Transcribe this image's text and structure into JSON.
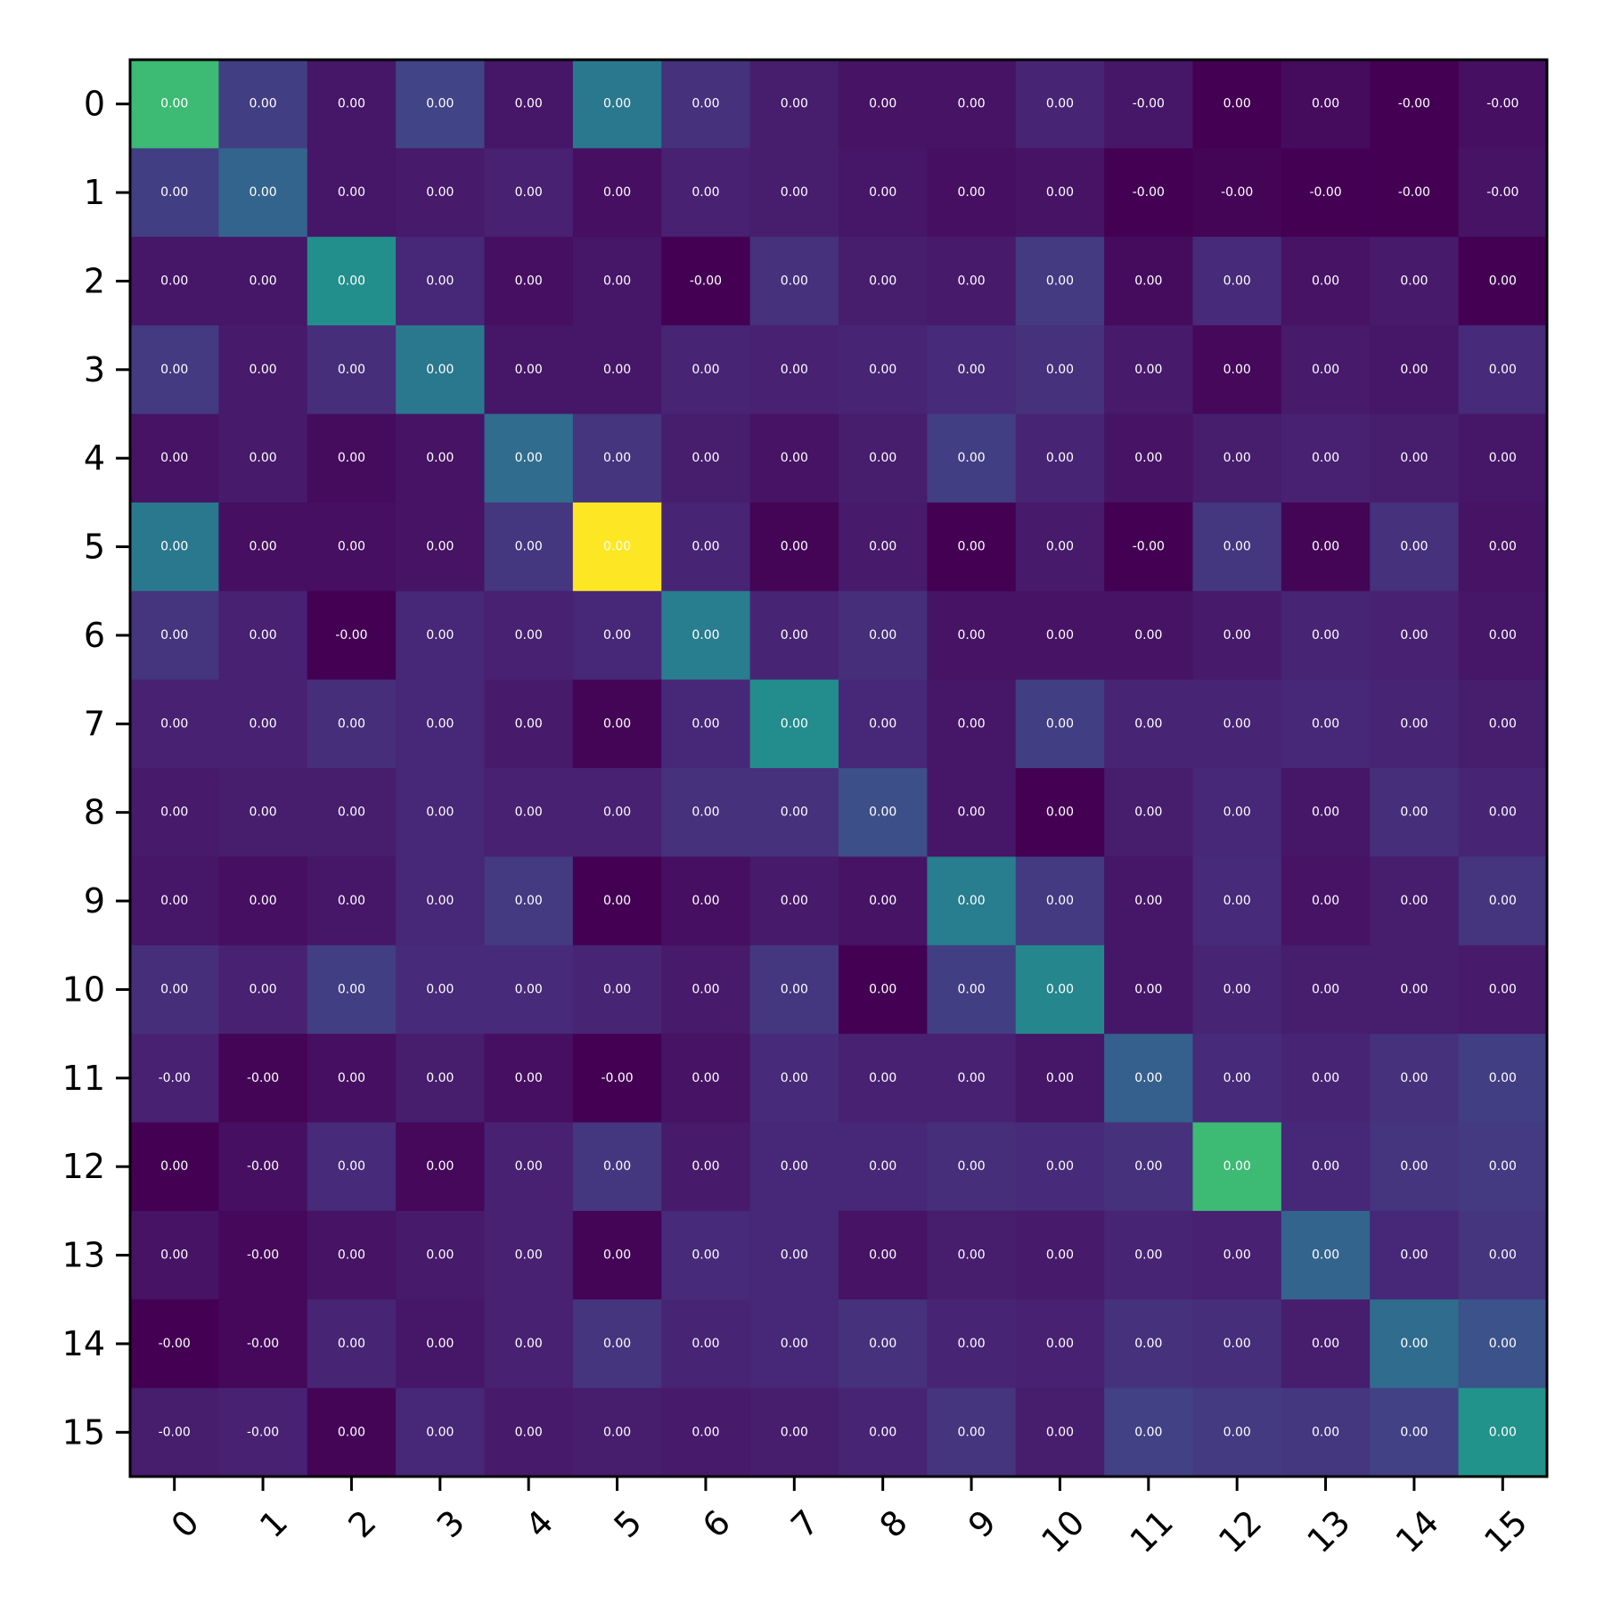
{
  "chart_data": {
    "type": "heatmap",
    "title": "",
    "xlabel": "",
    "ylabel": "",
    "colormap": "viridis",
    "x_categories": [
      "0",
      "1",
      "2",
      "3",
      "4",
      "5",
      "6",
      "7",
      "8",
      "9",
      "10",
      "11",
      "12",
      "13",
      "14",
      "15"
    ],
    "y_categories": [
      "0",
      "1",
      "2",
      "3",
      "4",
      "5",
      "6",
      "7",
      "8",
      "9",
      "10",
      "11",
      "12",
      "13",
      "14",
      "15"
    ],
    "intensity": [
      [
        0.68,
        0.18,
        0.06,
        0.2,
        0.06,
        0.4,
        0.14,
        0.08,
        0.05,
        0.05,
        0.1,
        0.06,
        0.0,
        0.03,
        0.0,
        0.04
      ],
      [
        0.18,
        0.32,
        0.06,
        0.07,
        0.09,
        0.04,
        0.09,
        0.08,
        0.06,
        0.04,
        0.05,
        0.0,
        0.01,
        0.0,
        0.0,
        0.05
      ],
      [
        0.06,
        0.06,
        0.49,
        0.11,
        0.04,
        0.06,
        0.0,
        0.14,
        0.08,
        0.07,
        0.17,
        0.03,
        0.12,
        0.05,
        0.07,
        0.0
      ],
      [
        0.17,
        0.07,
        0.13,
        0.4,
        0.06,
        0.06,
        0.1,
        0.09,
        0.1,
        0.12,
        0.14,
        0.07,
        0.02,
        0.07,
        0.06,
        0.12
      ],
      [
        0.05,
        0.07,
        0.03,
        0.05,
        0.35,
        0.15,
        0.08,
        0.05,
        0.08,
        0.18,
        0.1,
        0.05,
        0.08,
        0.09,
        0.08,
        0.06
      ],
      [
        0.4,
        0.04,
        0.04,
        0.05,
        0.16,
        1.0,
        0.1,
        0.01,
        0.07,
        0.0,
        0.07,
        0.0,
        0.16,
        0.01,
        0.14,
        0.05
      ],
      [
        0.15,
        0.09,
        0.0,
        0.11,
        0.09,
        0.11,
        0.42,
        0.1,
        0.13,
        0.05,
        0.05,
        0.05,
        0.07,
        0.1,
        0.09,
        0.06
      ],
      [
        0.09,
        0.09,
        0.13,
        0.11,
        0.07,
        0.01,
        0.11,
        0.48,
        0.11,
        0.06,
        0.18,
        0.1,
        0.1,
        0.11,
        0.1,
        0.08
      ],
      [
        0.07,
        0.08,
        0.08,
        0.11,
        0.09,
        0.09,
        0.14,
        0.14,
        0.24,
        0.06,
        0.0,
        0.08,
        0.11,
        0.06,
        0.13,
        0.1
      ],
      [
        0.06,
        0.04,
        0.06,
        0.11,
        0.17,
        0.0,
        0.04,
        0.07,
        0.05,
        0.42,
        0.17,
        0.06,
        0.12,
        0.05,
        0.08,
        0.15
      ],
      [
        0.13,
        0.09,
        0.18,
        0.12,
        0.12,
        0.1,
        0.07,
        0.16,
        0.0,
        0.18,
        0.46,
        0.06,
        0.1,
        0.08,
        0.08,
        0.07
      ],
      [
        0.09,
        0.01,
        0.04,
        0.08,
        0.04,
        0.0,
        0.05,
        0.12,
        0.09,
        0.09,
        0.06,
        0.3,
        0.12,
        0.1,
        0.14,
        0.18
      ],
      [
        0.0,
        0.04,
        0.12,
        0.02,
        0.09,
        0.16,
        0.07,
        0.11,
        0.11,
        0.13,
        0.12,
        0.14,
        0.68,
        0.11,
        0.15,
        0.17
      ],
      [
        0.05,
        0.02,
        0.05,
        0.07,
        0.09,
        0.01,
        0.12,
        0.11,
        0.05,
        0.08,
        0.07,
        0.1,
        0.09,
        0.32,
        0.11,
        0.15
      ],
      [
        0.0,
        0.02,
        0.1,
        0.06,
        0.09,
        0.15,
        0.1,
        0.11,
        0.14,
        0.1,
        0.09,
        0.14,
        0.13,
        0.08,
        0.35,
        0.25
      ],
      [
        0.08,
        0.09,
        0.01,
        0.11,
        0.07,
        0.08,
        0.07,
        0.08,
        0.1,
        0.15,
        0.08,
        0.19,
        0.17,
        0.16,
        0.19,
        0.51
      ]
    ],
    "cell_labels": [
      [
        "0.00",
        "0.00",
        "0.00",
        "0.00",
        "0.00",
        "0.00",
        "0.00",
        "0.00",
        "0.00",
        "0.00",
        "0.00",
        "-0.00",
        "0.00",
        "0.00",
        "-0.00",
        "-0.00"
      ],
      [
        "0.00",
        "0.00",
        "0.00",
        "0.00",
        "0.00",
        "0.00",
        "0.00",
        "0.00",
        "0.00",
        "0.00",
        "0.00",
        "-0.00",
        "-0.00",
        "-0.00",
        "-0.00",
        "-0.00"
      ],
      [
        "0.00",
        "0.00",
        "0.00",
        "0.00",
        "0.00",
        "0.00",
        "-0.00",
        "0.00",
        "0.00",
        "0.00",
        "0.00",
        "0.00",
        "0.00",
        "0.00",
        "0.00",
        "0.00"
      ],
      [
        "0.00",
        "0.00",
        "0.00",
        "0.00",
        "0.00",
        "0.00",
        "0.00",
        "0.00",
        "0.00",
        "0.00",
        "0.00",
        "0.00",
        "0.00",
        "0.00",
        "0.00",
        "0.00"
      ],
      [
        "0.00",
        "0.00",
        "0.00",
        "0.00",
        "0.00",
        "0.00",
        "0.00",
        "0.00",
        "0.00",
        "0.00",
        "0.00",
        "0.00",
        "0.00",
        "0.00",
        "0.00",
        "0.00"
      ],
      [
        "0.00",
        "0.00",
        "0.00",
        "0.00",
        "0.00",
        "0.00",
        "0.00",
        "0.00",
        "0.00",
        "0.00",
        "0.00",
        "-0.00",
        "0.00",
        "0.00",
        "0.00",
        "0.00"
      ],
      [
        "0.00",
        "0.00",
        "-0.00",
        "0.00",
        "0.00",
        "0.00",
        "0.00",
        "0.00",
        "0.00",
        "0.00",
        "0.00",
        "0.00",
        "0.00",
        "0.00",
        "0.00",
        "0.00"
      ],
      [
        "0.00",
        "0.00",
        "0.00",
        "0.00",
        "0.00",
        "0.00",
        "0.00",
        "0.00",
        "0.00",
        "0.00",
        "0.00",
        "0.00",
        "0.00",
        "0.00",
        "0.00",
        "0.00"
      ],
      [
        "0.00",
        "0.00",
        "0.00",
        "0.00",
        "0.00",
        "0.00",
        "0.00",
        "0.00",
        "0.00",
        "0.00",
        "0.00",
        "0.00",
        "0.00",
        "0.00",
        "0.00",
        "0.00"
      ],
      [
        "0.00",
        "0.00",
        "0.00",
        "0.00",
        "0.00",
        "0.00",
        "0.00",
        "0.00",
        "0.00",
        "0.00",
        "0.00",
        "0.00",
        "0.00",
        "0.00",
        "0.00",
        "0.00"
      ],
      [
        "0.00",
        "0.00",
        "0.00",
        "0.00",
        "0.00",
        "0.00",
        "0.00",
        "0.00",
        "0.00",
        "0.00",
        "0.00",
        "0.00",
        "0.00",
        "0.00",
        "0.00",
        "0.00"
      ],
      [
        "-0.00",
        "-0.00",
        "0.00",
        "0.00",
        "0.00",
        "-0.00",
        "0.00",
        "0.00",
        "0.00",
        "0.00",
        "0.00",
        "0.00",
        "0.00",
        "0.00",
        "0.00",
        "0.00"
      ],
      [
        "0.00",
        "-0.00",
        "0.00",
        "0.00",
        "0.00",
        "0.00",
        "0.00",
        "0.00",
        "0.00",
        "0.00",
        "0.00",
        "0.00",
        "0.00",
        "0.00",
        "0.00",
        "0.00"
      ],
      [
        "0.00",
        "-0.00",
        "0.00",
        "0.00",
        "0.00",
        "0.00",
        "0.00",
        "0.00",
        "0.00",
        "0.00",
        "0.00",
        "0.00",
        "0.00",
        "0.00",
        "0.00",
        "0.00"
      ],
      [
        "-0.00",
        "-0.00",
        "0.00",
        "0.00",
        "0.00",
        "0.00",
        "0.00",
        "0.00",
        "0.00",
        "0.00",
        "0.00",
        "0.00",
        "0.00",
        "0.00",
        "0.00",
        "0.00"
      ],
      [
        "-0.00",
        "-0.00",
        "0.00",
        "0.00",
        "0.00",
        "0.00",
        "0.00",
        "0.00",
        "0.00",
        "0.00",
        "0.00",
        "0.00",
        "0.00",
        "0.00",
        "0.00",
        "0.00"
      ]
    ],
    "grid": false,
    "legend": "none",
    "colorbar": false
  }
}
